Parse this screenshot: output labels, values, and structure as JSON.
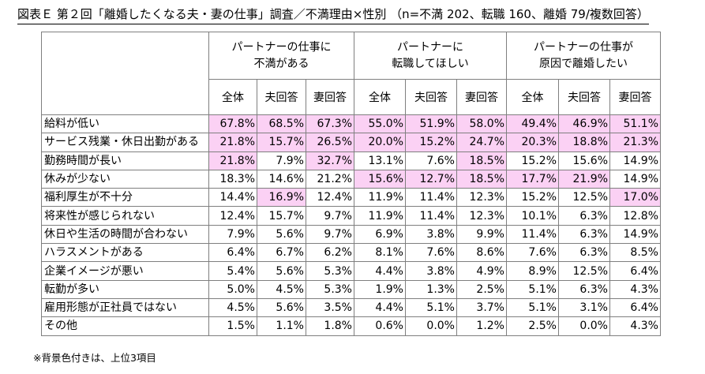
{
  "title": "図表Ｅ 第２回「離婚したくなる夫・妻の仕事」調査／不満理由×性別 （n=不満 202、転職 160、離婚 79/複数回答）",
  "groups": [
    {
      "line1": "パートナーの仕事に",
      "line2": "不満がある"
    },
    {
      "line1": "パートナーに",
      "line2": "転職してほしい"
    },
    {
      "line1": "パートナーの仕事が",
      "line2": "原因で離婚したい"
    }
  ],
  "subheaders": [
    "全体",
    "夫回答",
    "妻回答",
    "全体",
    "夫回答",
    "妻回答",
    "全体",
    "夫回答",
    "妻回答"
  ],
  "rows": [
    {
      "label": "給料が低い",
      "values": [
        "67.8%",
        "68.5%",
        "67.3%",
        "55.0%",
        "51.9%",
        "58.0%",
        "49.4%",
        "46.9%",
        "51.1%"
      ],
      "highlight": [
        1,
        1,
        1,
        1,
        1,
        1,
        1,
        1,
        1
      ]
    },
    {
      "label": "サービス残業・休日出勤がある",
      "values": [
        "21.8%",
        "15.7%",
        "26.5%",
        "20.0%",
        "15.2%",
        "24.7%",
        "20.3%",
        "18.8%",
        "21.3%"
      ],
      "highlight": [
        1,
        1,
        1,
        1,
        1,
        1,
        1,
        1,
        1
      ]
    },
    {
      "label": "勤務時間が長い",
      "values": [
        "21.8%",
        "7.9%",
        "32.7%",
        "13.1%",
        "7.6%",
        "18.5%",
        "15.2%",
        "15.6%",
        "14.9%"
      ],
      "highlight": [
        1,
        0,
        1,
        0,
        0,
        1,
        0,
        0,
        0
      ]
    },
    {
      "label": "休みが少ない",
      "values": [
        "18.3%",
        "14.6%",
        "21.2%",
        "15.6%",
        "12.7%",
        "18.5%",
        "17.7%",
        "21.9%",
        "14.9%"
      ],
      "highlight": [
        0,
        0,
        0,
        1,
        1,
        1,
        1,
        1,
        0
      ]
    },
    {
      "label": "福利厚生が不十分",
      "values": [
        "14.4%",
        "16.9%",
        "12.4%",
        "11.9%",
        "11.4%",
        "12.3%",
        "15.2%",
        "12.5%",
        "17.0%"
      ],
      "highlight": [
        0,
        1,
        0,
        0,
        0,
        0,
        0,
        0,
        1
      ]
    },
    {
      "label": "将来性が感じられない",
      "values": [
        "12.4%",
        "15.7%",
        "9.7%",
        "11.9%",
        "11.4%",
        "12.3%",
        "10.1%",
        "6.3%",
        "12.8%"
      ],
      "highlight": [
        0,
        0,
        0,
        0,
        0,
        0,
        0,
        0,
        0
      ]
    },
    {
      "label": "休日や生活の時間が合わない",
      "values": [
        "7.9%",
        "5.6%",
        "9.7%",
        "6.9%",
        "3.8%",
        "9.9%",
        "11.4%",
        "6.3%",
        "14.9%"
      ],
      "highlight": [
        0,
        0,
        0,
        0,
        0,
        0,
        0,
        0,
        0
      ]
    },
    {
      "label": "ハラスメントがある",
      "values": [
        "6.4%",
        "6.7%",
        "6.2%",
        "8.1%",
        "7.6%",
        "8.6%",
        "7.6%",
        "6.3%",
        "8.5%"
      ],
      "highlight": [
        0,
        0,
        0,
        0,
        0,
        0,
        0,
        0,
        0
      ]
    },
    {
      "label": "企業イメージが悪い",
      "values": [
        "5.4%",
        "5.6%",
        "5.3%",
        "4.4%",
        "3.8%",
        "4.9%",
        "8.9%",
        "12.5%",
        "6.4%"
      ],
      "highlight": [
        0,
        0,
        0,
        0,
        0,
        0,
        0,
        0,
        0
      ]
    },
    {
      "label": "転勤が多い",
      "values": [
        "5.0%",
        "4.5%",
        "5.3%",
        "1.9%",
        "1.3%",
        "2.5%",
        "5.1%",
        "6.3%",
        "4.3%"
      ],
      "highlight": [
        0,
        0,
        0,
        0,
        0,
        0,
        0,
        0,
        0
      ]
    },
    {
      "label": "雇用形態が正社員ではない",
      "values": [
        "4.5%",
        "5.6%",
        "3.5%",
        "4.4%",
        "5.1%",
        "3.7%",
        "5.1%",
        "3.1%",
        "6.4%"
      ],
      "highlight": [
        0,
        0,
        0,
        0,
        0,
        0,
        0,
        0,
        0
      ]
    },
    {
      "label": "その他",
      "values": [
        "1.5%",
        "1.1%",
        "1.8%",
        "0.6%",
        "0.0%",
        "1.2%",
        "2.5%",
        "0.0%",
        "4.3%"
      ],
      "highlight": [
        0,
        0,
        0,
        0,
        0,
        0,
        0,
        0,
        0
      ]
    }
  ],
  "colors": {
    "highlight": "#fbd1f4"
  },
  "note": "※背景色付きは、上位3項目"
}
